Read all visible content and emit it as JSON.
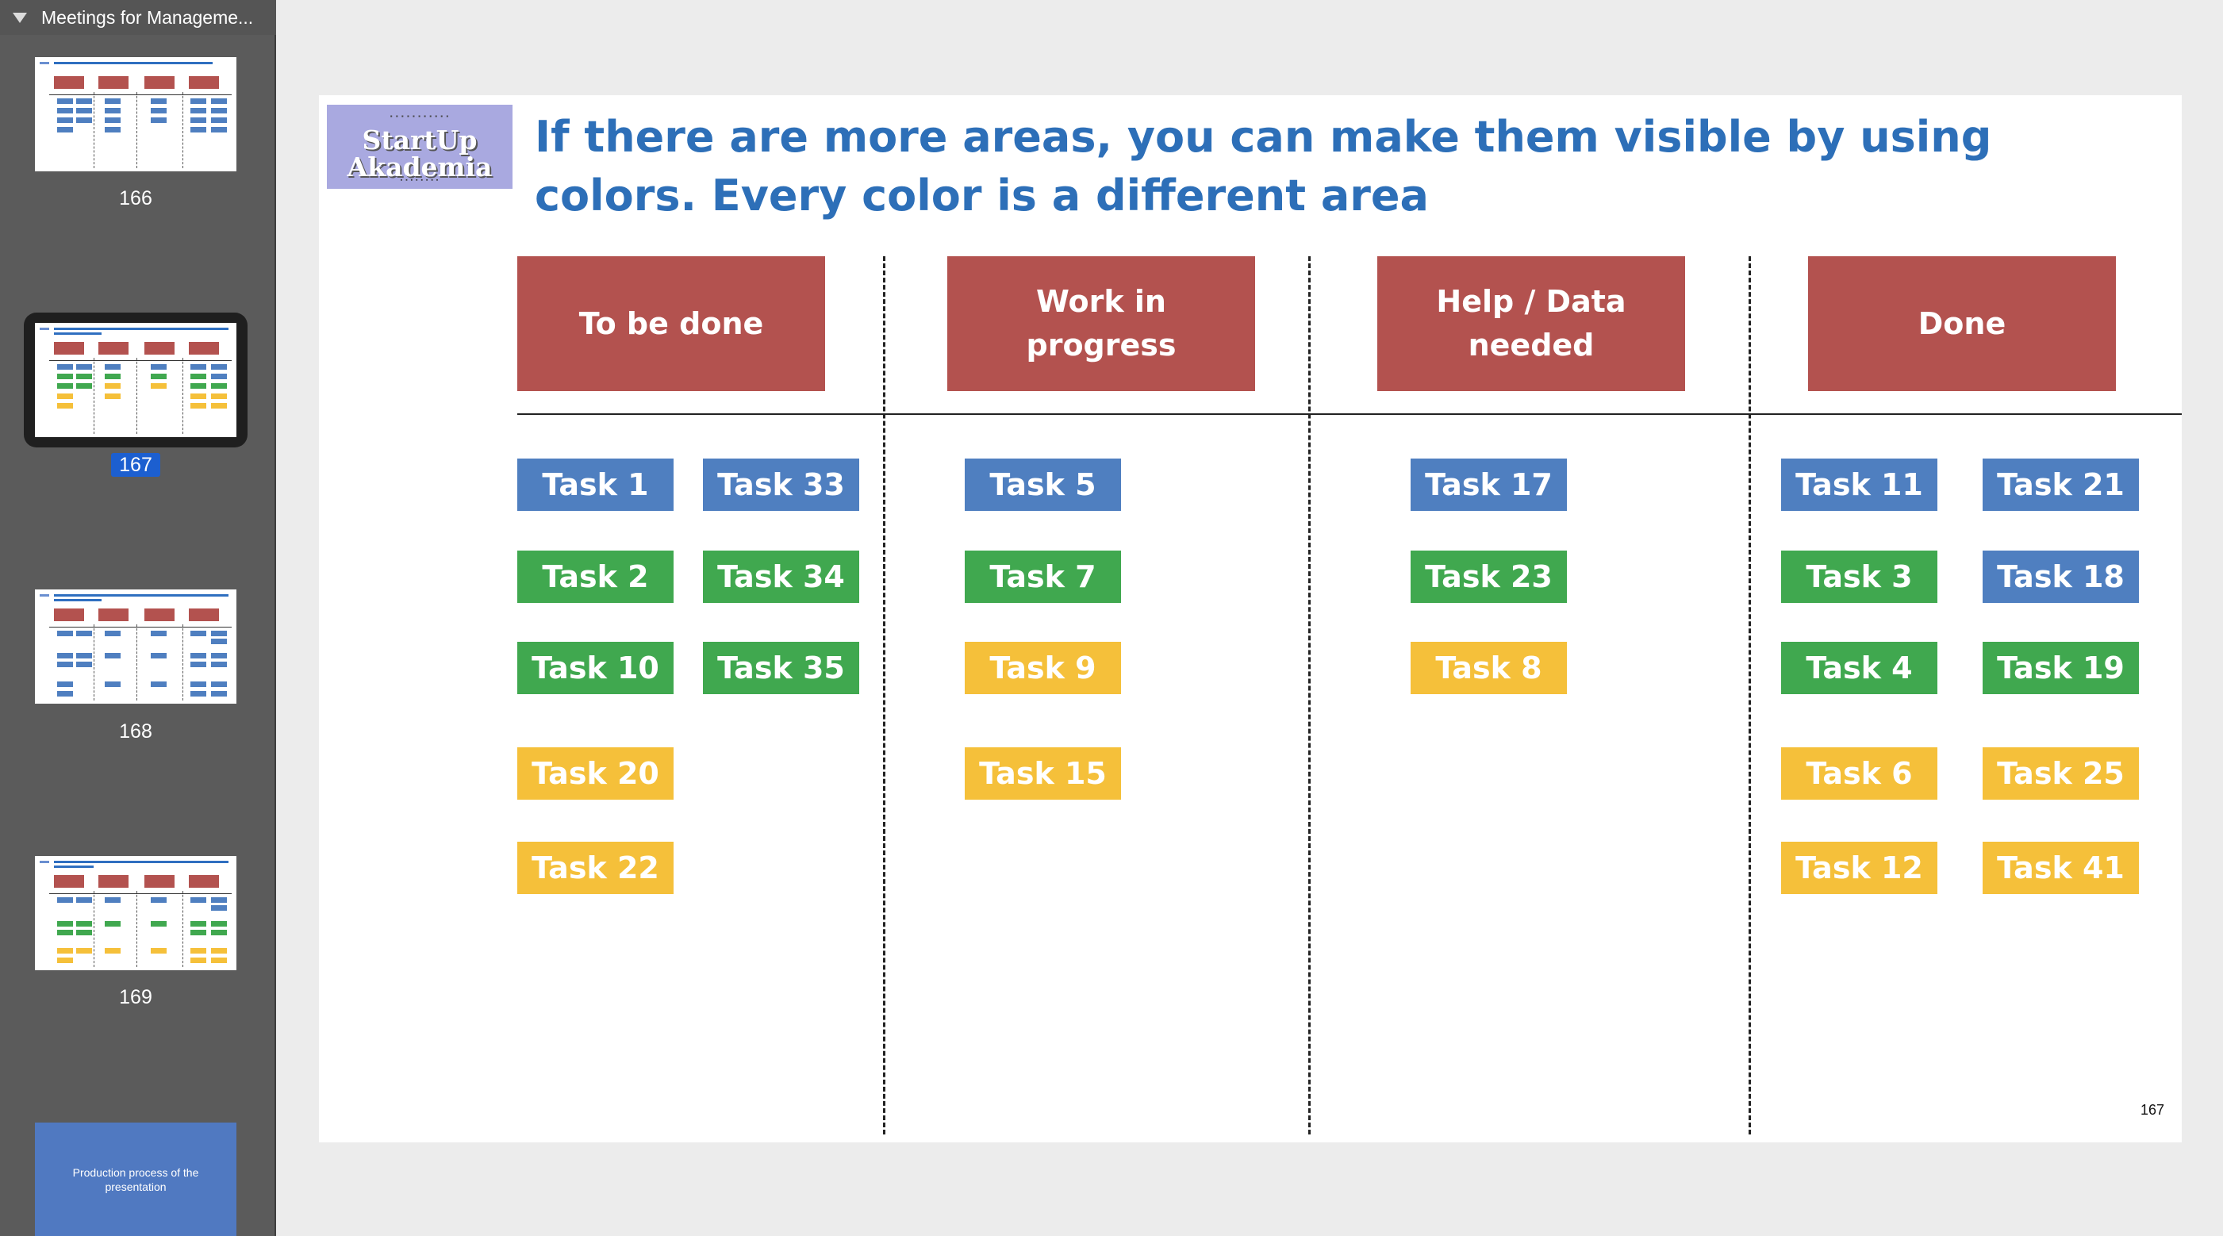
{
  "sidebar": {
    "title": "Meetings for Manageme...",
    "slides": [
      {
        "number": "166"
      },
      {
        "number": "167"
      },
      {
        "number": "168"
      },
      {
        "number": "169"
      }
    ],
    "last_slide_text": "Production process of the presentation"
  },
  "slide": {
    "title": "If there are more areas, you can make them visible by using colors. Every color is a different area",
    "logo": {
      "main": "StartUp Akademia"
    },
    "page_number": "167",
    "columns": [
      "To be done",
      "Work in progress",
      "Help / Data needed",
      "Done"
    ],
    "tasks": {
      "t1": "Task 1",
      "t33": "Task 33",
      "t2": "Task 2",
      "t34": "Task 34",
      "t10": "Task 10",
      "t35": "Task 35",
      "t20": "Task 20",
      "t22": "Task 22",
      "t5": "Task 5",
      "t7": "Task 7",
      "t9": "Task 9",
      "t15": "Task 15",
      "t17": "Task 17",
      "t23": "Task 23",
      "t8": "Task 8",
      "t11": "Task 11",
      "t21": "Task 21",
      "t3": "Task 3",
      "t18": "Task 18",
      "t4": "Task 4",
      "t19": "Task 19",
      "t6": "Task 6",
      "t25": "Task 25",
      "t12": "Task 12",
      "t41": "Task 41"
    },
    "colors": {
      "header": "#b3524f",
      "blue": "#4f7fc0",
      "green": "#40a84f",
      "yellow": "#f5c03a",
      "title": "#2d6fb8"
    }
  }
}
